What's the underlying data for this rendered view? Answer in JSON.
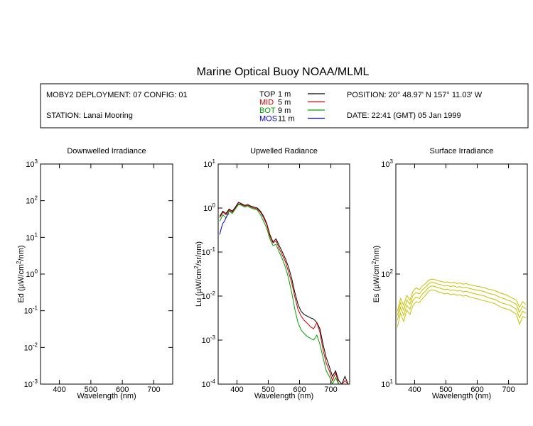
{
  "header": {
    "title": "Marine Optical Buoy NOAA/MLML",
    "deployment": "MOBY2 DEPLOYMENT: 07 CONFIG: 01",
    "station": "STATION: Lanai Mooring",
    "position": "POSITION: 20° 48.97' N   157° 11.03' W",
    "date": "DATE: 22:41 (GMT) 05 Jan 1999"
  },
  "legend": [
    {
      "code": "TOP",
      "depth": " 1  m",
      "color": "#000000"
    },
    {
      "code": "MID",
      "depth": " 5  m",
      "color": "#cc0000"
    },
    {
      "code": "BOT",
      "depth": " 9  m",
      "color": "#00a000"
    },
    {
      "code": "MOS",
      "depth": "11  m",
      "color": "#0000cc"
    }
  ],
  "chart_data": [
    {
      "type": "line",
      "title": "Downwelled Irradiance",
      "xlabel": "Wavelength (nm)",
      "ylabel_pre": "Ed  (µW/cm",
      "ylabel_sup": "2",
      "ylabel_post": "/nm)",
      "xlim": [
        340,
        760
      ],
      "xticks": [
        "400",
        "500",
        "600",
        "700"
      ],
      "log_y": true,
      "yticks": [
        {
          "base": "10",
          "exp": "-3"
        },
        {
          "base": "10",
          "exp": "-2"
        },
        {
          "base": "10",
          "exp": "-1"
        },
        {
          "base": "10",
          "exp": "0"
        },
        {
          "base": "10",
          "exp": "1"
        },
        {
          "base": "10",
          "exp": "2"
        },
        {
          "base": "10",
          "exp": "3"
        }
      ],
      "ylim_exp": [
        -3,
        3
      ],
      "series": []
    },
    {
      "type": "line",
      "title": "Upwelled Radiance",
      "xlabel": "Wavelength (nm)",
      "ylabel_pre": "Lu  (µW/cm",
      "ylabel_sup": "2",
      "ylabel_post": "/sr/nm)",
      "xlim": [
        340,
        760
      ],
      "xticks": [
        "400",
        "500",
        "600",
        "700"
      ],
      "log_y": true,
      "yticks": [
        {
          "base": "10",
          "exp": "-4"
        },
        {
          "base": "10",
          "exp": "-3"
        },
        {
          "base": "10",
          "exp": "-2"
        },
        {
          "base": "10",
          "exp": "-1"
        },
        {
          "base": "10",
          "exp": "0"
        },
        {
          "base": "10",
          "exp": "1"
        }
      ],
      "ylim_exp": [
        -4,
        1
      ],
      "series": [
        {
          "color": "#000000",
          "x": [
            345,
            355,
            365,
            375,
            385,
            395,
            405,
            415,
            425,
            435,
            445,
            455,
            465,
            475,
            485,
            495,
            505,
            515,
            525,
            535,
            545,
            555,
            565,
            575,
            585,
            595,
            605,
            615,
            625,
            635,
            645,
            655,
            665,
            675,
            685,
            695,
            705,
            715,
            725,
            735,
            745,
            755
          ],
          "y": [
            0.65,
            0.85,
            0.75,
            0.95,
            0.85,
            1.05,
            1.35,
            1.25,
            1.15,
            1.2,
            1.1,
            1.05,
            1.0,
            0.85,
            0.65,
            0.45,
            0.25,
            0.17,
            0.2,
            0.14,
            0.1,
            0.07,
            0.045,
            0.025,
            0.012,
            0.0065,
            0.0045,
            0.0038,
            0.0035,
            0.0032,
            0.003,
            0.0025,
            0.0018,
            0.0008,
            0.0004,
            0.00025,
            0.00015,
            0.0002,
            0.00012,
            0.0001,
            0.00015,
            0.0001
          ]
        },
        {
          "color": "#cc0000",
          "x": [
            345,
            355,
            365,
            375,
            385,
            395,
            405,
            415,
            425,
            435,
            445,
            455,
            465,
            475,
            485,
            495,
            505,
            515,
            525,
            535,
            545,
            555,
            565,
            575,
            585,
            595,
            605,
            615,
            625,
            635,
            645,
            655,
            665,
            675,
            685,
            695,
            705,
            715,
            725,
            735,
            745,
            755
          ],
          "y": [
            0.6,
            0.8,
            0.7,
            0.9,
            0.8,
            1.0,
            1.25,
            1.2,
            1.1,
            1.15,
            1.05,
            1.0,
            0.95,
            0.8,
            0.6,
            0.42,
            0.23,
            0.16,
            0.18,
            0.12,
            0.085,
            0.06,
            0.035,
            0.02,
            0.0095,
            0.005,
            0.0035,
            0.0028,
            0.0024,
            0.002,
            0.0018,
            0.0025,
            0.0015,
            0.0006,
            0.0003,
            0.0002,
            0.00012,
            0.00018,
            0.0001,
            0.0001,
            0.00012,
            0.0001
          ]
        },
        {
          "color": "#00a000",
          "x": [
            345,
            355,
            365,
            375,
            385,
            395,
            405,
            415,
            425,
            435,
            445,
            455,
            465,
            475,
            485,
            495,
            505,
            515,
            525,
            535,
            545,
            555,
            565,
            575,
            585,
            595,
            605,
            615,
            625,
            635,
            645,
            655,
            665,
            675,
            685,
            695,
            705,
            715,
            725,
            735,
            745,
            755
          ],
          "y": [
            0.5,
            0.7,
            0.6,
            0.85,
            0.75,
            0.95,
            1.2,
            1.15,
            1.05,
            1.1,
            1.0,
            0.95,
            0.9,
            0.7,
            0.5,
            0.35,
            0.2,
            0.14,
            0.15,
            0.1,
            0.07,
            0.045,
            0.025,
            0.012,
            0.005,
            0.0025,
            0.0017,
            0.0014,
            0.0012,
            0.0011,
            0.001,
            0.0013,
            0.0008,
            0.0004,
            0.0002,
            0.00015,
            0.0001,
            0.00014,
            0.0001,
            0.0001,
            0.0001,
            0.0001
          ]
        },
        {
          "color": "#0000cc",
          "x": [
            345,
            350,
            355,
            360,
            365,
            370,
            375
          ],
          "y": [
            0.25,
            0.35,
            0.45,
            0.5,
            0.6,
            0.7,
            0.75
          ]
        }
      ]
    },
    {
      "type": "line",
      "title": "Surface Irradiance",
      "xlabel": "Wavelength (nm)",
      "ylabel_pre": "Es  (µW/cm",
      "ylabel_sup": "2",
      "ylabel_post": "/nm)",
      "xlim": [
        340,
        760
      ],
      "xticks": [
        "400",
        "500",
        "600",
        "700"
      ],
      "log_y": true,
      "yticks": [
        {
          "base": "10",
          "exp": "1"
        },
        {
          "base": "10",
          "exp": "2"
        },
        {
          "base": "10",
          "exp": "3"
        }
      ],
      "ylim_exp": [
        1,
        3
      ],
      "series": [
        {
          "color": "#c8c000",
          "x": [
            345,
            355,
            365,
            375,
            385,
            395,
            405,
            415,
            425,
            435,
            445,
            455,
            465,
            475,
            485,
            495,
            505,
            515,
            525,
            535,
            545,
            555,
            565,
            575,
            585,
            595,
            605,
            615,
            625,
            635,
            645,
            655,
            665,
            675,
            685,
            695,
            705,
            715,
            725,
            735,
            745,
            755
          ],
          "y": [
            46,
            60,
            52,
            64,
            58,
            70,
            75,
            72,
            78,
            82,
            88,
            90,
            89,
            87,
            86,
            84,
            85,
            83,
            84,
            82,
            83,
            81,
            82,
            80,
            79,
            78,
            77,
            76,
            75,
            73,
            72,
            71,
            69,
            67,
            66,
            64,
            62,
            60,
            58,
            50,
            56,
            53
          ]
        },
        {
          "color": "#c8c000",
          "x": [
            345,
            355,
            365,
            375,
            385,
            395,
            405,
            415,
            425,
            435,
            445,
            455,
            465,
            475,
            485,
            495,
            505,
            515,
            525,
            535,
            545,
            555,
            565,
            575,
            585,
            595,
            605,
            615,
            625,
            635,
            645,
            655,
            665,
            675,
            685,
            695,
            705,
            715,
            725,
            735,
            745,
            755
          ],
          "y": [
            42,
            55,
            47,
            58,
            53,
            64,
            68,
            66,
            72,
            76,
            82,
            84,
            83,
            81,
            80,
            78,
            79,
            77,
            78,
            76,
            77,
            75,
            76,
            74,
            73,
            72,
            71,
            70,
            69,
            67,
            66,
            65,
            63,
            61,
            60,
            58,
            57,
            55,
            53,
            45,
            51,
            48
          ]
        },
        {
          "color": "#c8c000",
          "x": [
            345,
            355,
            365,
            375,
            385,
            395,
            405,
            415,
            425,
            435,
            445,
            455,
            465,
            475,
            485,
            495,
            505,
            515,
            525,
            535,
            545,
            555,
            565,
            575,
            585,
            595,
            605,
            615,
            625,
            635,
            645,
            655,
            665,
            675,
            685,
            695,
            705,
            715,
            725,
            735,
            745,
            755
          ],
          "y": [
            38,
            50,
            42,
            52,
            48,
            58,
            62,
            60,
            66,
            70,
            76,
            78,
            77,
            75,
            74,
            72,
            73,
            71,
            72,
            70,
            71,
            69,
            70,
            68,
            67,
            66,
            65,
            64,
            63,
            61,
            60,
            59,
            57,
            55,
            54,
            53,
            52,
            50,
            48,
            40,
            46,
            44
          ]
        },
        {
          "color": "#c8c000",
          "x": [
            345,
            355,
            365,
            375,
            385,
            395,
            405,
            415,
            425,
            435,
            445,
            455,
            465,
            475,
            485,
            495,
            505,
            515,
            525,
            535,
            545,
            555,
            565,
            575,
            585,
            595,
            605,
            615,
            625,
            635,
            645,
            655,
            665,
            675,
            685,
            695,
            705,
            715,
            725,
            735,
            745,
            755
          ],
          "y": [
            33,
            44,
            37,
            47,
            43,
            52,
            56,
            55,
            60,
            64,
            70,
            72,
            71,
            69,
            68,
            66,
            67,
            65,
            66,
            64,
            65,
            63,
            64,
            62,
            61,
            60,
            59,
            58,
            57,
            56,
            55,
            54,
            52,
            50,
            49,
            48,
            47,
            45,
            43,
            35,
            41,
            40
          ]
        }
      ]
    }
  ]
}
